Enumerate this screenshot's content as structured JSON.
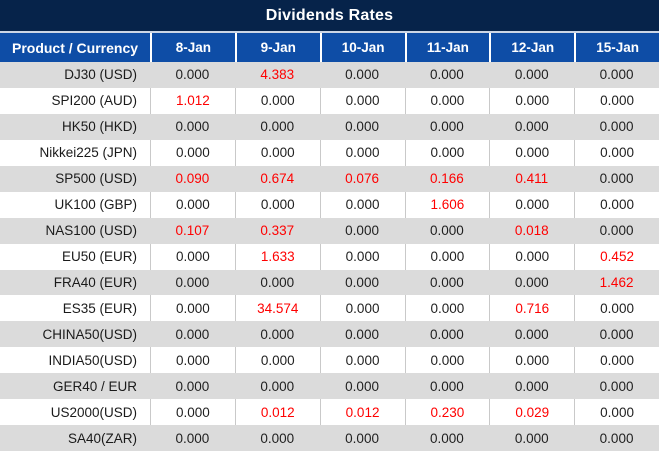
{
  "title": "Dividends Rates",
  "table": {
    "corner_header": "Product / Currency",
    "date_columns": [
      "8-Jan",
      "9-Jan",
      "10-Jan",
      "11-Jan",
      "12-Jan",
      "15-Jan"
    ],
    "rows": [
      {
        "product": "DJ30 (USD)",
        "values": [
          "0.000",
          "4.383",
          "0.000",
          "0.000",
          "0.000",
          "0.000"
        ]
      },
      {
        "product": "SPI200 (AUD)",
        "values": [
          "1.012",
          "0.000",
          "0.000",
          "0.000",
          "0.000",
          "0.000"
        ]
      },
      {
        "product": "HK50 (HKD)",
        "values": [
          "0.000",
          "0.000",
          "0.000",
          "0.000",
          "0.000",
          "0.000"
        ]
      },
      {
        "product": "Nikkei225 (JPN)",
        "values": [
          "0.000",
          "0.000",
          "0.000",
          "0.000",
          "0.000",
          "0.000"
        ]
      },
      {
        "product": "SP500 (USD)",
        "values": [
          "0.090",
          "0.674",
          "0.076",
          "0.166",
          "0.411",
          "0.000"
        ]
      },
      {
        "product": "UK100 (GBP)",
        "values": [
          "0.000",
          "0.000",
          "0.000",
          "1.606",
          "0.000",
          "0.000"
        ]
      },
      {
        "product": "NAS100 (USD)",
        "values": [
          "0.107",
          "0.337",
          "0.000",
          "0.000",
          "0.018",
          "0.000"
        ]
      },
      {
        "product": "EU50 (EUR)",
        "values": [
          "0.000",
          "1.633",
          "0.000",
          "0.000",
          "0.000",
          "0.452"
        ]
      },
      {
        "product": "FRA40 (EUR)",
        "values": [
          "0.000",
          "0.000",
          "0.000",
          "0.000",
          "0.000",
          "1.462"
        ]
      },
      {
        "product": "ES35 (EUR)",
        "values": [
          "0.000",
          "34.574",
          "0.000",
          "0.000",
          "0.716",
          "0.000"
        ]
      },
      {
        "product": "CHINA50(USD)",
        "values": [
          "0.000",
          "0.000",
          "0.000",
          "0.000",
          "0.000",
          "0.000"
        ]
      },
      {
        "product": "INDIA50(USD)",
        "values": [
          "0.000",
          "0.000",
          "0.000",
          "0.000",
          "0.000",
          "0.000"
        ]
      },
      {
        "product": "GER40 / EUR",
        "values": [
          "0.000",
          "0.000",
          "0.000",
          "0.000",
          "0.000",
          "0.000"
        ]
      },
      {
        "product": "US2000(USD)",
        "values": [
          "0.000",
          "0.012",
          "0.012",
          "0.230",
          "0.029",
          "0.000"
        ]
      },
      {
        "product": "SA40(ZAR)",
        "values": [
          "0.000",
          "0.000",
          "0.000",
          "0.000",
          "0.000",
          "0.000"
        ]
      }
    ]
  },
  "colors": {
    "title_bg": "#06234a",
    "header_bg": "#0e4da6",
    "row_alt_bg": "#dbdbdb",
    "row_bg": "#ffffff",
    "value_zero": "#1f1f1f",
    "value_nonzero": "#ff0000"
  }
}
